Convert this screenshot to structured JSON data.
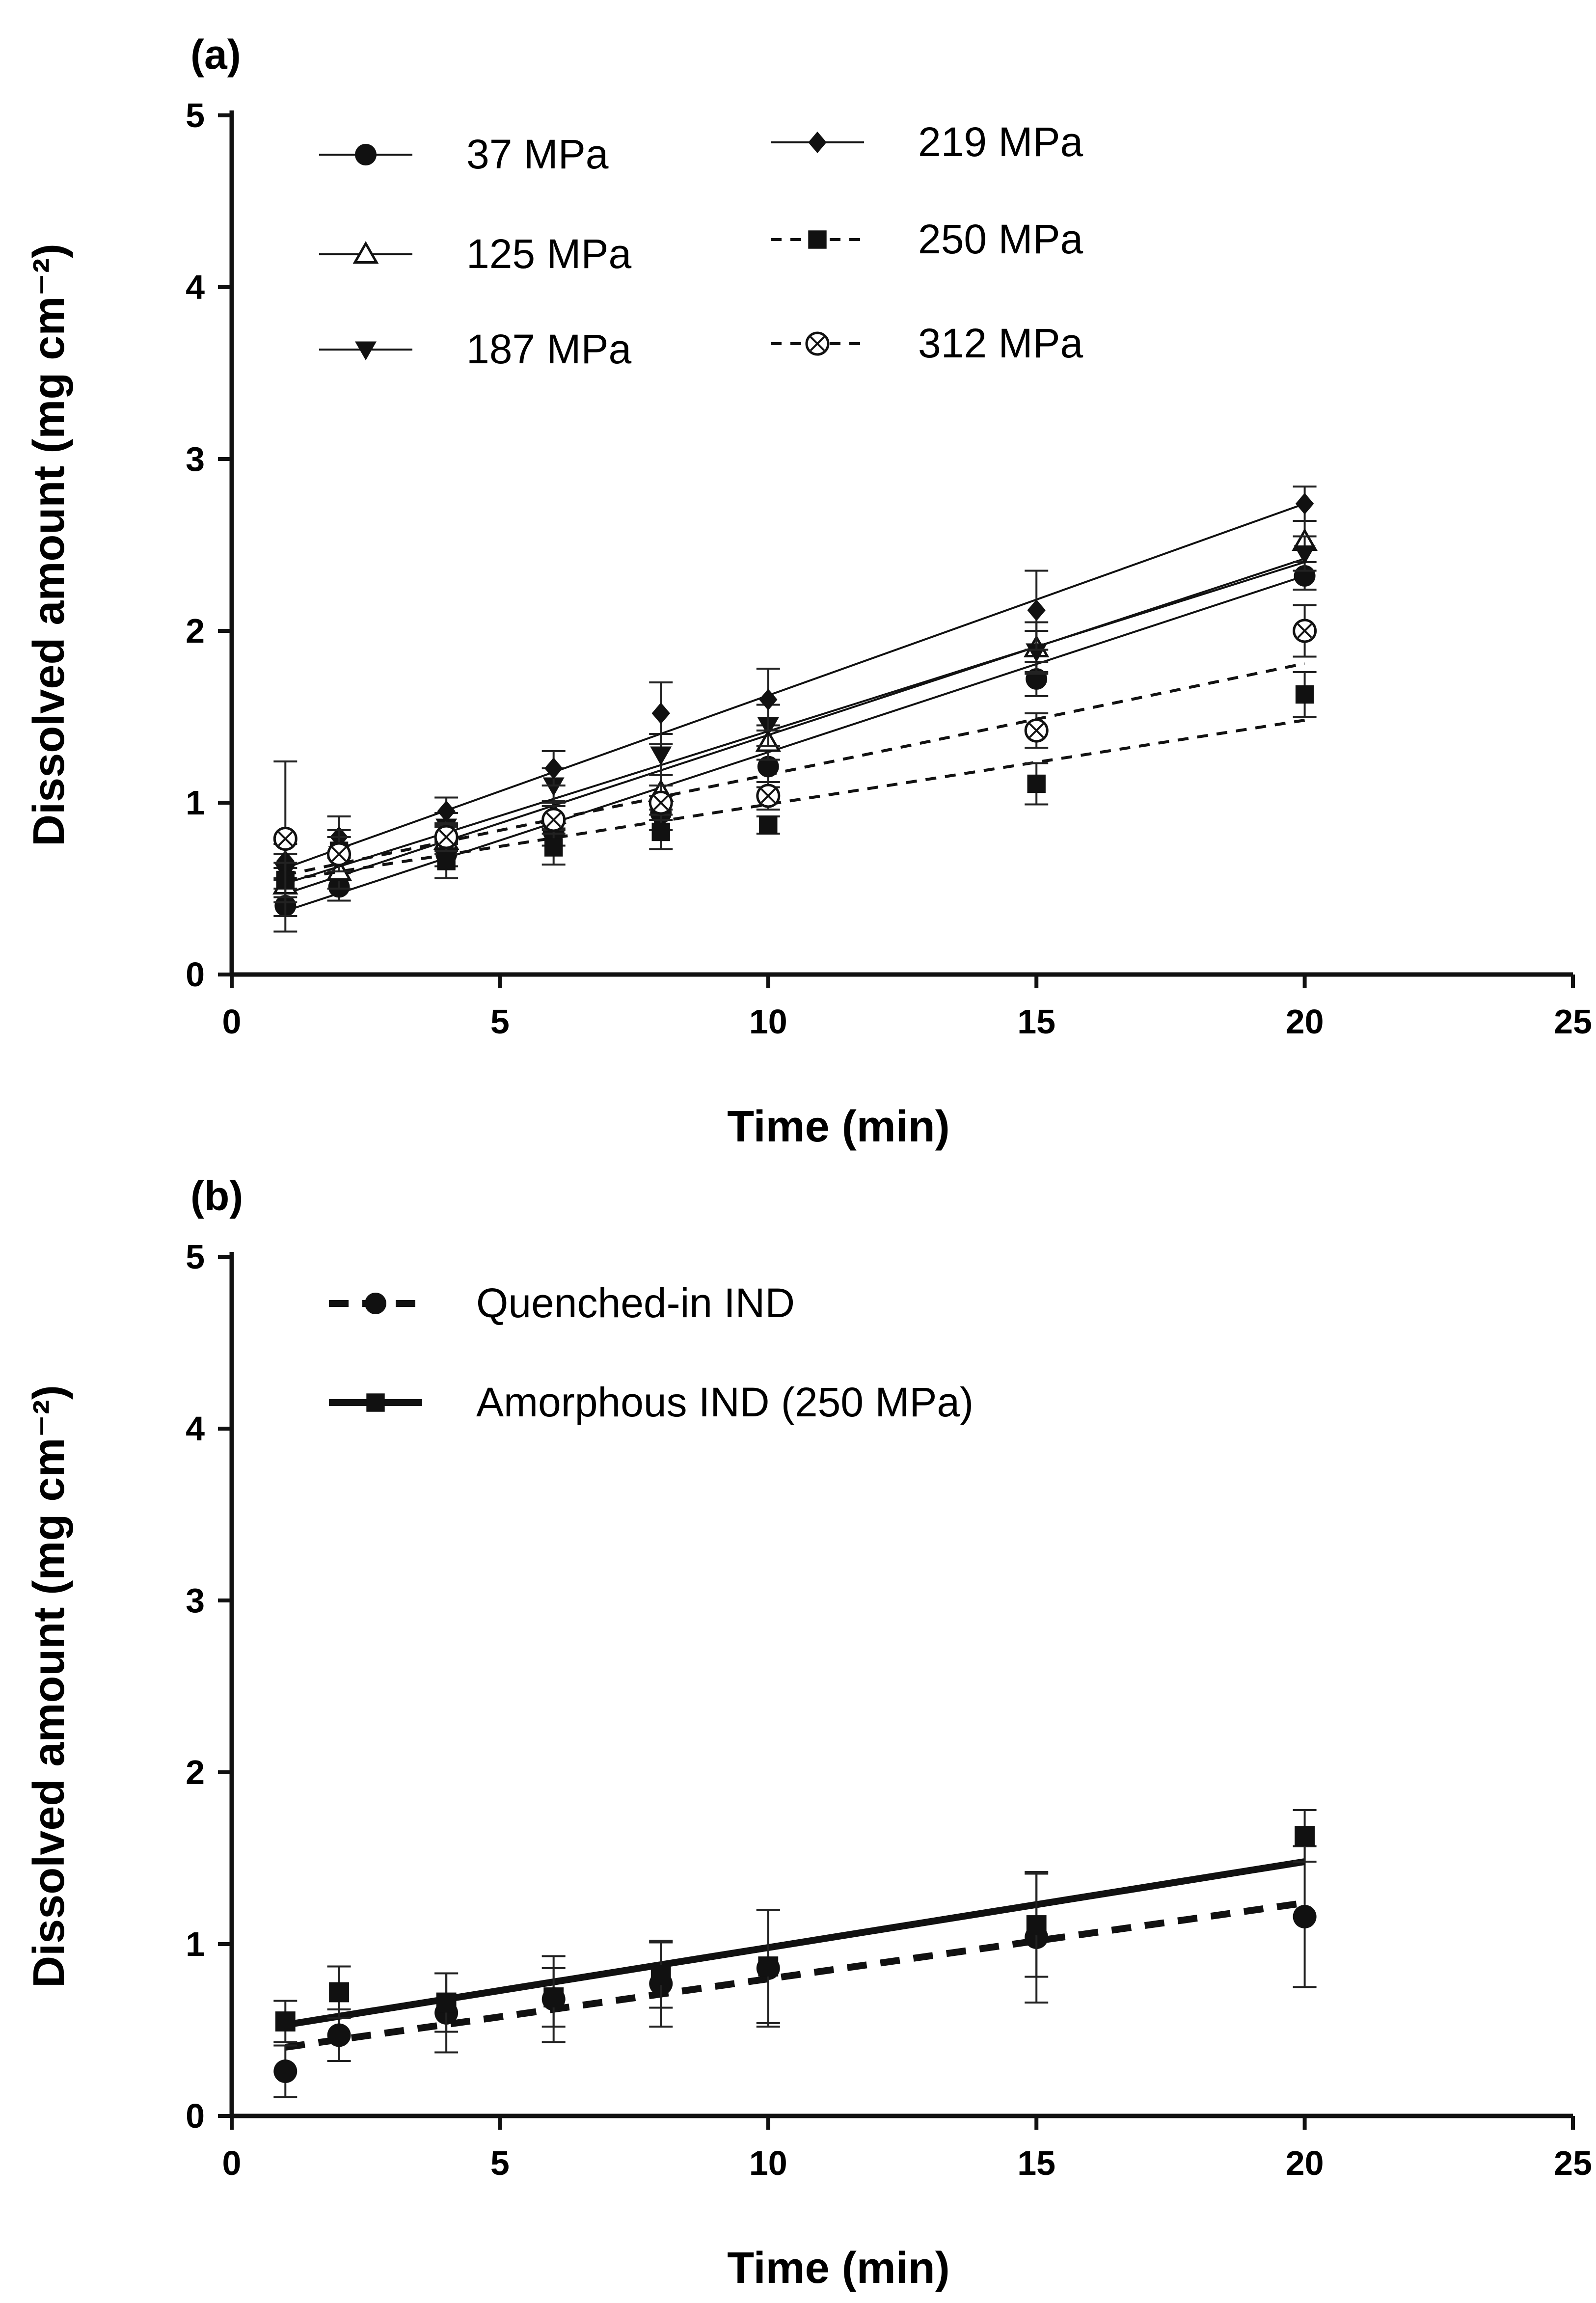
{
  "chart_data": [
    {
      "panel_label": "(a)",
      "type": "scatter",
      "xlabel": "Time (min)",
      "ylabel": "Dissolved amount (mg cm⁻²)",
      "xlim": [
        0,
        25
      ],
      "ylim": [
        0,
        5
      ],
      "xticks": [
        0,
        5,
        10,
        15,
        20,
        25
      ],
      "yticks": [
        0,
        1,
        2,
        3,
        4,
        5
      ],
      "grid": false,
      "legend_position": "top-left, two columns",
      "series": [
        {
          "name": "37 MPa",
          "marker": "filled-circle",
          "line": "solid",
          "x": [
            1,
            2,
            4,
            6,
            8,
            10,
            15,
            20
          ],
          "y": [
            0.4,
            0.51,
            0.7,
            0.83,
            0.94,
            1.21,
            1.72,
            2.32
          ],
          "err": [
            0.15,
            0.08,
            0.07,
            0.08,
            0.1,
            0.12,
            0.1,
            0.08
          ],
          "fit": [
            0.37,
            2.32
          ]
        },
        {
          "name": "125 MPa",
          "marker": "open-triangle-up",
          "line": "solid",
          "x": [
            1,
            2,
            4,
            6,
            8,
            10,
            15,
            20
          ],
          "y": [
            0.52,
            0.6,
            0.78,
            0.93,
            1.06,
            1.35,
            1.9,
            2.52
          ],
          "err": [
            0.1,
            0.1,
            0.08,
            0.08,
            0.1,
            0.1,
            0.15,
            0.12
          ],
          "fit": [
            0.47,
            2.42
          ]
        },
        {
          "name": "187 MPa",
          "marker": "filled-triangle-down",
          "line": "solid",
          "x": [
            1,
            2,
            4,
            6,
            8,
            10,
            15,
            20
          ],
          "y": [
            0.6,
            0.7,
            0.86,
            1.1,
            1.28,
            1.45,
            1.88,
            2.45
          ],
          "err": [
            0.1,
            0.1,
            0.08,
            0.1,
            0.12,
            0.12,
            0.12,
            0.1
          ],
          "fit": [
            0.53,
            2.4
          ]
        },
        {
          "name": "219 MPa",
          "marker": "filled-diamond",
          "line": "solid",
          "x": [
            1,
            2,
            4,
            6,
            8,
            10,
            15,
            20
          ],
          "y": [
            0.66,
            0.8,
            0.95,
            1.2,
            1.52,
            1.6,
            2.12,
            2.74
          ],
          "err": [
            0.1,
            0.12,
            0.08,
            0.1,
            0.18,
            0.18,
            0.23,
            0.1
          ],
          "fit": [
            0.62,
            2.74
          ]
        },
        {
          "name": "250 MPa",
          "marker": "filled-square",
          "line": "dashed",
          "x": [
            1,
            2,
            4,
            6,
            8,
            10,
            15,
            20
          ],
          "y": [
            0.55,
            0.72,
            0.66,
            0.74,
            0.83,
            0.87,
            1.11,
            1.63
          ],
          "err": [
            0.1,
            0.12,
            0.1,
            0.1,
            0.1,
            0.05,
            0.12,
            0.13
          ],
          "fit": [
            0.55,
            1.48
          ]
        },
        {
          "name": "312 MPa",
          "marker": "circle-x",
          "line": "dashed",
          "x": [
            1,
            2,
            4,
            6,
            8,
            10,
            15,
            20
          ],
          "y": [
            0.79,
            0.7,
            0.8,
            0.9,
            1.0,
            1.04,
            1.42,
            2.0
          ],
          "err": [
            0.45,
            0.1,
            0.08,
            0.08,
            0.1,
            0.08,
            0.1,
            0.15
          ],
          "fit": [
            0.58,
            1.81
          ]
        }
      ]
    },
    {
      "panel_label": "(b)",
      "type": "scatter",
      "xlabel": "Time (min)",
      "ylabel": "Dissolved amount (mg cm⁻²)",
      "xlim": [
        0,
        25
      ],
      "ylim": [
        0,
        5
      ],
      "xticks": [
        0,
        5,
        10,
        15,
        20,
        25
      ],
      "yticks": [
        0,
        1,
        2,
        3,
        4,
        5
      ],
      "grid": false,
      "legend_position": "top-left",
      "series": [
        {
          "name": "Quenched-in IND",
          "marker": "filled-circle",
          "line": "dashed-thick",
          "x": [
            1,
            2,
            4,
            6,
            8,
            10,
            15,
            20
          ],
          "y": [
            0.26,
            0.47,
            0.6,
            0.68,
            0.77,
            0.86,
            1.04,
            1.16
          ],
          "err": [
            0.15,
            0.15,
            0.23,
            0.25,
            0.25,
            0.34,
            0.38,
            0.41
          ],
          "fit": [
            0.4,
            1.24
          ]
        },
        {
          "name": "Amorphous  IND (250 MPa)",
          "marker": "filled-square",
          "line": "solid-thick",
          "x": [
            1,
            2,
            4,
            6,
            8,
            10,
            15,
            20
          ],
          "y": [
            0.55,
            0.72,
            0.66,
            0.69,
            0.82,
            0.87,
            1.11,
            1.63
          ],
          "err": [
            0.12,
            0.15,
            0.17,
            0.17,
            0.19,
            0.33,
            0.3,
            0.15
          ],
          "fit": [
            0.53,
            1.48
          ]
        }
      ]
    }
  ]
}
